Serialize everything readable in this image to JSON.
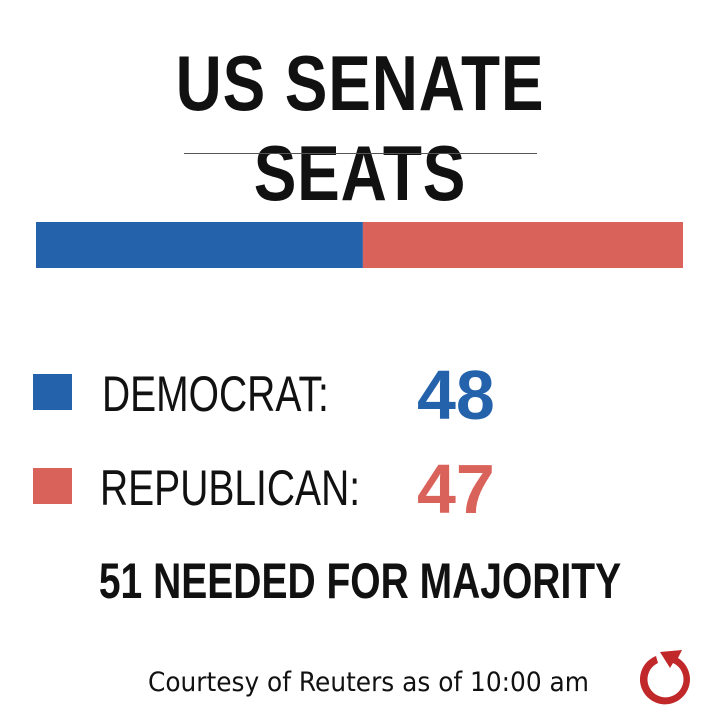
{
  "title": "US SENATE SEATS",
  "chart_data": {
    "type": "bar",
    "orientation": "horizontal-stacked",
    "categories": [
      "DEMOCRAT",
      "REPUBLICAN"
    ],
    "values": [
      48,
      47
    ],
    "colors": [
      "#2463ac",
      "#d9625a"
    ]
  },
  "legend": [
    {
      "label": "DEMOCRAT:",
      "value": "48",
      "color": "#2463ac"
    },
    {
      "label": "REPUBLICAN:",
      "value": "47",
      "color": "#d9625a"
    }
  ],
  "majority_note": "51 NEEDED FOR MAJORITY",
  "credit": "Courtesy of Reuters as of 10:00 am",
  "logo_icon": "refresh-arrow-icon",
  "logo_color": "#c0282a"
}
